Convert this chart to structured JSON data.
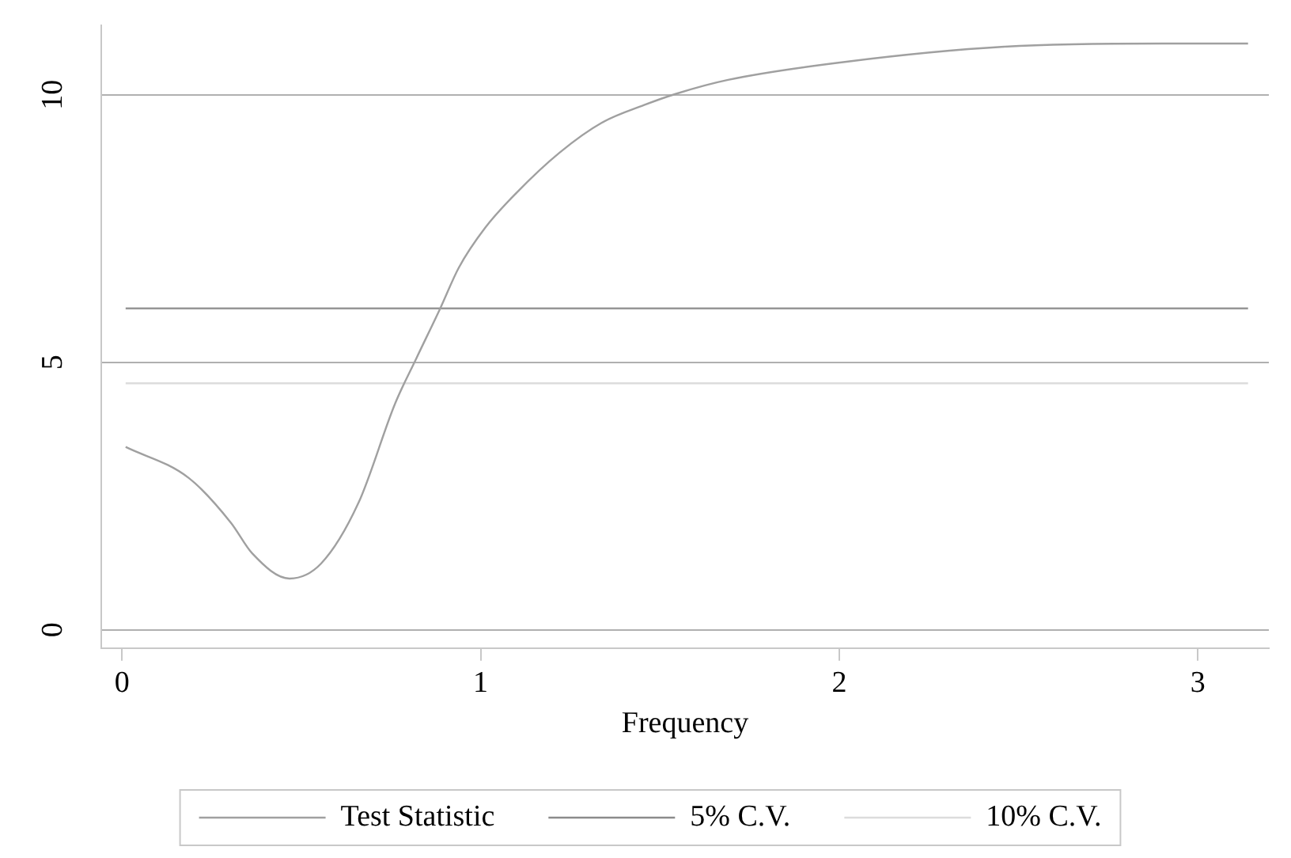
{
  "chart_data": {
    "type": "line",
    "xlabel": "Frequency",
    "xlim": [
      -0.058,
      3.198
    ],
    "xticks": [
      0,
      1,
      2,
      3
    ],
    "ylim": [
      -0.34,
      11.3
    ],
    "yticks": [
      0,
      5,
      10
    ],
    "grid": "y",
    "legend": "bottom",
    "marker": "none",
    "line_style": "solid",
    "series": [
      {
        "name": "Test Statistic",
        "color": "#a0a0a0",
        "x": [
          0.01,
          0.186,
          0.304,
          0.363,
          0.467,
          0.555,
          0.659,
          0.762,
          0.821,
          0.888,
          0.939,
          1.013,
          1.1,
          1.22,
          1.338,
          1.456,
          1.545,
          1.69,
          2.02,
          2.46,
          2.9,
          3.14
        ],
        "values": [
          3.42,
          2.84,
          2.0,
          1.43,
          0.96,
          1.24,
          2.37,
          4.24,
          5.08,
          6.02,
          6.77,
          7.52,
          8.17,
          8.92,
          9.48,
          9.81,
          10.02,
          10.28,
          10.62,
          10.9,
          10.96,
          10.96
        ]
      },
      {
        "name": "5% C.V.",
        "color": "#8c8c8c",
        "x": [
          0.01,
          3.14
        ],
        "values": [
          6.01,
          6.01
        ]
      },
      {
        "name": "10% C.V.",
        "color": "#dcdcdc",
        "x": [
          0.01,
          3.14
        ],
        "values": [
          4.61,
          4.61
        ]
      }
    ]
  }
}
